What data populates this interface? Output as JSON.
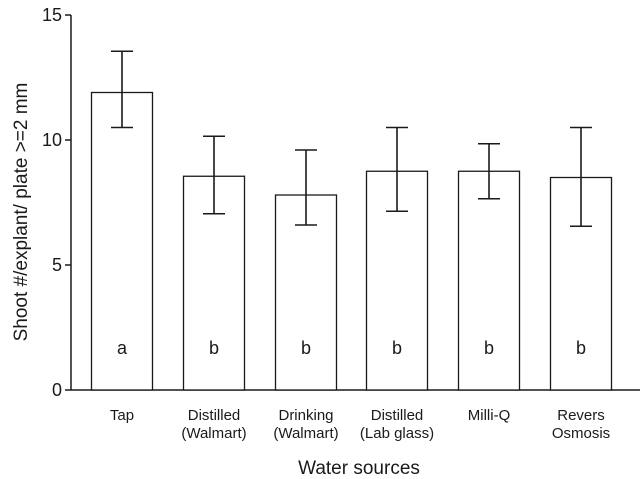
{
  "chart_data": {
    "type": "bar",
    "title": "",
    "xlabel": "Water sources",
    "ylabel": "Shoot #/explant/ plate >=2 mm",
    "ylim": [
      0,
      15
    ],
    "yticks": [
      0,
      5,
      10,
      15
    ],
    "grid": false,
    "legend": "none",
    "categories": [
      [
        "Tap"
      ],
      [
        "Distilled",
        "(Walmart)"
      ],
      [
        "Drinking",
        "(Walmart)"
      ],
      [
        "Distilled",
        "(Lab glass)"
      ],
      [
        "Milli-Q"
      ],
      [
        "Revers",
        "Osmosis"
      ]
    ],
    "series": [
      {
        "values": [
          11.9,
          8.55,
          7.8,
          8.75,
          8.75,
          8.5
        ],
        "error_low": [
          10.5,
          7.05,
          6.6,
          7.15,
          7.65,
          6.55
        ],
        "error_high": [
          13.55,
          10.15,
          9.6,
          10.5,
          9.85,
          10.5
        ]
      }
    ],
    "annotations": [
      "a",
      "b",
      "b",
      "b",
      "b",
      "b"
    ],
    "colors": {
      "bar_fill": "#ffffff",
      "stroke": "#1a1a1a"
    }
  }
}
